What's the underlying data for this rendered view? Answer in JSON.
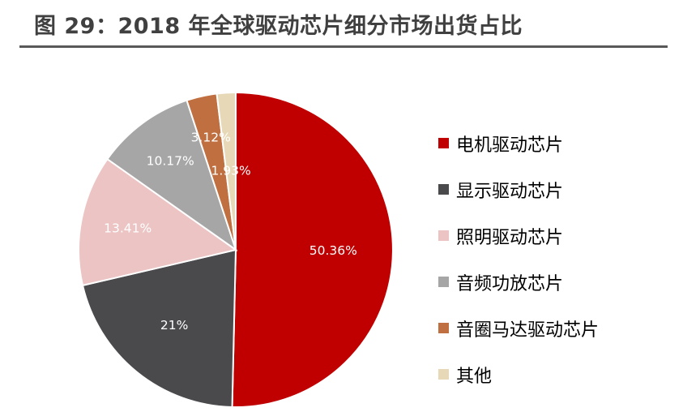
{
  "title": "图 29：2018 年全球驱动芯片细分市场出货占比",
  "chart_data": {
    "type": "pie",
    "title": "图 29：2018 年全球驱动芯片细分市场出货占比",
    "start": "top",
    "direction": "clockwise",
    "legend_position": "right",
    "slices": [
      {
        "label": "电机驱动芯片",
        "value": 50.36,
        "display": "50.36%",
        "color": "#c00000"
      },
      {
        "label": "显示驱动芯片",
        "value": 21,
        "display": "21%",
        "color": "#4a4a4d"
      },
      {
        "label": "照明驱动芯片",
        "value": 13.41,
        "display": "13.41%",
        "color": "#ecc4c4"
      },
      {
        "label": "音频功放芯片",
        "value": 10.17,
        "display": "10.17%",
        "color": "#a6a6a6"
      },
      {
        "label": "音圈马达驱动芯片",
        "value": 3.12,
        "display": "3.12%",
        "color": "#c07040"
      },
      {
        "label": "其他",
        "value": 1.93,
        "display": "1.93%",
        "color": "#e7d8b8"
      }
    ]
  }
}
